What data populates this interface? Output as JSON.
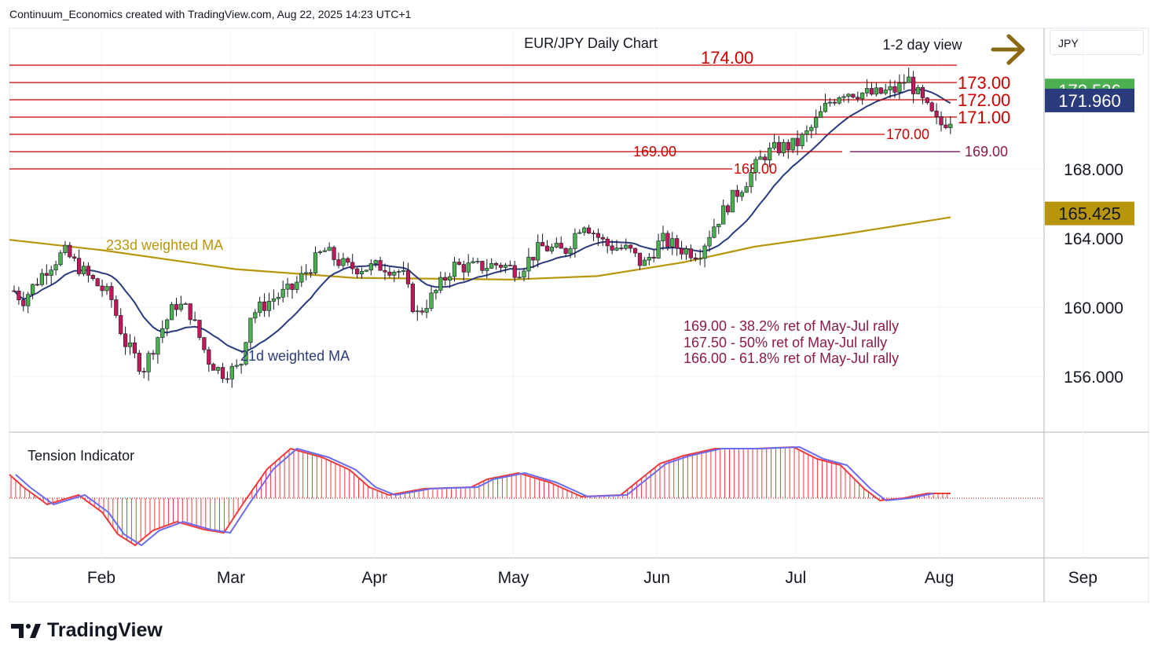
{
  "header": {
    "text": "Continuum_Economics created with TradingView.com, Aug 22, 2025 14:23 UTC+1"
  },
  "brand": {
    "name": "TradingView"
  },
  "currency_button": {
    "label": "JPY"
  },
  "colors": {
    "up_candle": "#4caf50",
    "down_candle": "#c2185b",
    "level_red": "#cc0000",
    "ma21": "#2a3b7c",
    "ma233": "#b8960c",
    "fib_text": "#8b1a4a",
    "tension_red": "#ef3b3b",
    "tension_blue": "#6b6bf0",
    "view_arrow": "#8b6914"
  },
  "chart_data": [
    {
      "type": "candlestick",
      "title": "EUR/JPY Daily Chart",
      "view_label": "1-2 day view",
      "y_axis": {
        "ticks": [
          "168.000",
          "164.000",
          "160.000",
          "156.000"
        ],
        "range": [
          153.5,
          176.0
        ]
      },
      "x_axis": {
        "ticks": [
          "Feb",
          "Mar",
          "Apr",
          "May",
          "Jun",
          "Jul",
          "Aug",
          "Sep"
        ]
      },
      "price_badges": [
        {
          "value": "172.536",
          "color": "#4caf50"
        },
        {
          "value": "171.960",
          "color": "#2a3b7c"
        },
        {
          "value": "165.425",
          "color": "#b8960c"
        }
      ],
      "levels": [
        {
          "label": "174.00",
          "value": 174.0
        },
        {
          "label": "173.00",
          "value": 173.0
        },
        {
          "label": "172.00",
          "value": 172.0
        },
        {
          "label": "171.00",
          "value": 171.0
        },
        {
          "label": "170.00",
          "value": 170.0
        },
        {
          "label": "169.00",
          "value": 169.0
        },
        {
          "label": "168.00",
          "value": 168.0
        }
      ],
      "fib_level": {
        "label": "169.00",
        "value": 169.0
      },
      "annotations": [
        "169.00 - 38.2% ret of May-Jul rally",
        "167.50 - 50% ret of May-Jul rally",
        "166.00 - 61.8% ret of May-Jul rally"
      ],
      "ma_labels": {
        "ma233": "233d weighted MA",
        "ma21": "21d weighted MA"
      },
      "close_path": [
        [
          "2025-01-06",
          162.6
        ],
        [
          "2025-01-10",
          161.9
        ],
        [
          "2025-01-15",
          160.4
        ],
        [
          "2025-01-20",
          162.2
        ],
        [
          "2025-01-24",
          163.2
        ],
        [
          "2025-01-29",
          161.8
        ],
        [
          "2025-02-03",
          160.6
        ],
        [
          "2025-02-06",
          158.0
        ],
        [
          "2025-02-10",
          156.4
        ],
        [
          "2025-02-13",
          158.2
        ],
        [
          "2025-02-17",
          160.2
        ],
        [
          "2025-02-20",
          159.8
        ],
        [
          "2025-02-24",
          157.0
        ],
        [
          "2025-02-27",
          156.2
        ],
        [
          "2025-03-03",
          156.5
        ],
        [
          "2025-03-05",
          159.5
        ],
        [
          "2025-03-10",
          160.5
        ],
        [
          "2025-03-14",
          161.0
        ],
        [
          "2025-03-18",
          162.3
        ],
        [
          "2025-03-21",
          163.3
        ],
        [
          "2025-03-26",
          162.3
        ],
        [
          "2025-03-31",
          162.3
        ],
        [
          "2025-04-03",
          162.4
        ],
        [
          "2025-04-07",
          162.0
        ],
        [
          "2025-04-10",
          159.5
        ],
        [
          "2025-04-14",
          160.8
        ],
        [
          "2025-04-18",
          162.4
        ],
        [
          "2025-04-23",
          162.3
        ],
        [
          "2025-04-28",
          162.5
        ],
        [
          "2025-05-02",
          162.1
        ],
        [
          "2025-05-07",
          163.5
        ],
        [
          "2025-05-12",
          163.2
        ],
        [
          "2025-05-16",
          165.0
        ],
        [
          "2025-05-21",
          163.6
        ],
        [
          "2025-05-26",
          163.3
        ],
        [
          "2025-05-29",
          162.4
        ],
        [
          "2025-06-02",
          163.9
        ],
        [
          "2025-06-06",
          163.4
        ],
        [
          "2025-06-10",
          163.1
        ],
        [
          "2025-06-13",
          164.6
        ],
        [
          "2025-06-17",
          166.2
        ],
        [
          "2025-06-20",
          167.2
        ],
        [
          "2025-06-24",
          168.8
        ],
        [
          "2025-06-27",
          169.2
        ],
        [
          "2025-07-01",
          169.4
        ],
        [
          "2025-07-04",
          170.2
        ],
        [
          "2025-07-08",
          171.8
        ],
        [
          "2025-07-11",
          172.5
        ],
        [
          "2025-07-15",
          172.4
        ],
        [
          "2025-07-18",
          172.3
        ],
        [
          "2025-07-23",
          172.6
        ],
        [
          "2025-07-25",
          173.3
        ],
        [
          "2025-07-29",
          171.6
        ],
        [
          "2025-08-01",
          170.5
        ],
        [
          "2025-08-05",
          171.2
        ],
        [
          "2025-08-08",
          172.1
        ],
        [
          "2025-08-13",
          172.3
        ],
        [
          "2025-08-18",
          172.1
        ],
        [
          "2025-08-22",
          172.536
        ]
      ]
    },
    {
      "type": "line",
      "title": "Tension Indicator"
    }
  ]
}
